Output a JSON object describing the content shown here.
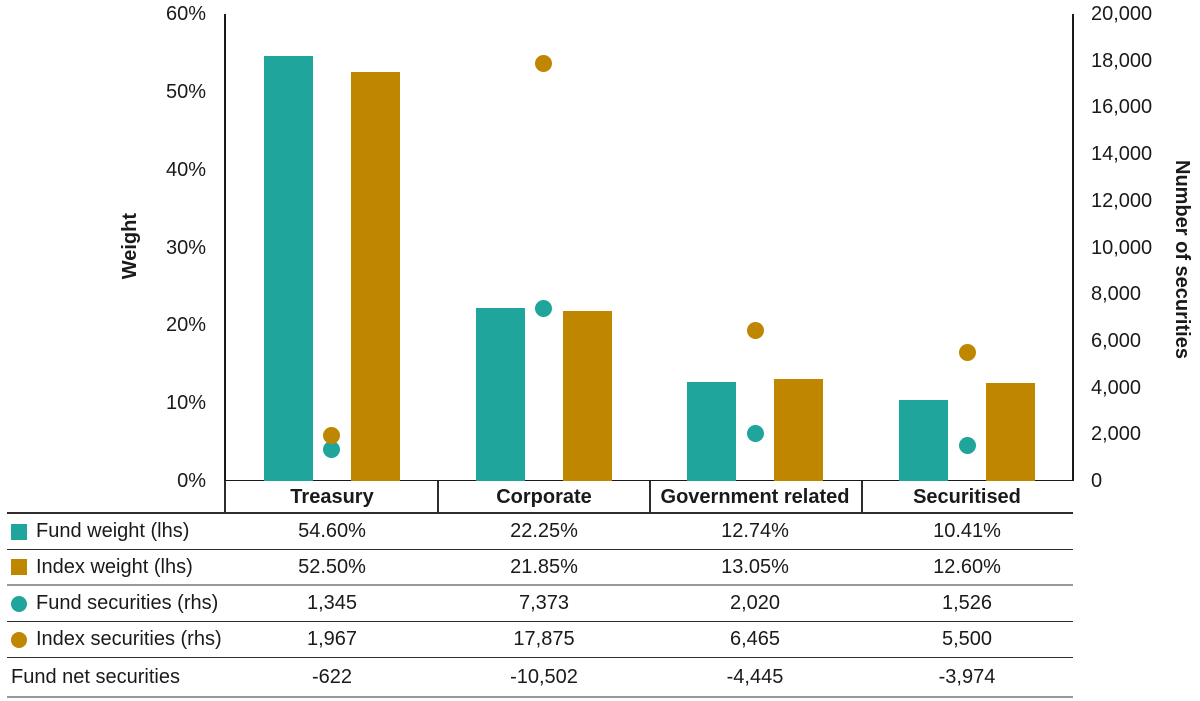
{
  "theme": {
    "teal": "#1FA59B",
    "gold": "#BF8600",
    "text": "#1A1A1A",
    "line_dark": "#2D2D2D",
    "line_gray": "#999999",
    "background": "#FFFFFF"
  },
  "chart_data": {
    "type": "combo-bar-scatter",
    "categories": [
      "Treasury",
      "Corporate",
      "Government related",
      "Securitised"
    ],
    "series": [
      {
        "key": "fund-weight",
        "name": "Fund weight (lhs)",
        "type": "bar",
        "axis": "left",
        "color": "#1FA59B",
        "values": [
          54.6,
          22.25,
          12.74,
          10.41
        ]
      },
      {
        "key": "index-weight",
        "name": "Index weight (lhs)",
        "type": "bar",
        "axis": "left",
        "color": "#BF8600",
        "values": [
          52.5,
          21.85,
          13.05,
          12.6
        ]
      },
      {
        "key": "fund-securities",
        "name": "Fund securities (rhs)",
        "type": "scatter",
        "axis": "right",
        "color": "#1FA59B",
        "values": [
          1345,
          7373,
          2020,
          1526
        ]
      },
      {
        "key": "index-securities",
        "name": "Index securities (rhs)",
        "type": "scatter",
        "axis": "right",
        "color": "#BF8600",
        "values": [
          1967,
          17875,
          6465,
          5500
        ]
      }
    ],
    "left_axis": {
      "title": "Weight",
      "min": 0,
      "max": 60,
      "unit": "%",
      "ticks": [
        "0%",
        "10%",
        "20%",
        "30%",
        "40%",
        "50%",
        "60%"
      ]
    },
    "right_axis": {
      "title": "Number of securities",
      "min": 0,
      "max": 20000,
      "ticks": [
        "0",
        "2,000",
        "4,000",
        "6,000",
        "8,000",
        "10,000",
        "12,000",
        "14,000",
        "16,000",
        "18,000",
        "20,000"
      ]
    },
    "grid": false,
    "legend_position": "table-left"
  },
  "table": {
    "header": [
      "Treasury",
      "Corporate",
      "Government related",
      "Securitised"
    ],
    "rows": [
      {
        "marker": "square",
        "marker_color": "teal",
        "label": "Fund weight (lhs)",
        "values": [
          "54.60%",
          "22.25%",
          "12.74%",
          "10.41%"
        ]
      },
      {
        "marker": "square",
        "marker_color": "gold",
        "label": "Index weight (lhs)",
        "values": [
          "52.50%",
          "21.85%",
          "13.05%",
          "12.60%"
        ]
      },
      {
        "marker": "circle",
        "marker_color": "teal",
        "label": "Fund securities (rhs)",
        "values": [
          "1,345",
          "7,373",
          "2,020",
          "1,526"
        ]
      },
      {
        "marker": "circle",
        "marker_color": "gold",
        "label": "Index securities (rhs)",
        "values": [
          "1,967",
          "17,875",
          "6,465",
          "5,500"
        ]
      },
      {
        "marker": "none",
        "marker_color": "",
        "label": "Fund net securities",
        "values": [
          "-622",
          "-10,502",
          "-4,445",
          "-3,974"
        ]
      }
    ]
  }
}
